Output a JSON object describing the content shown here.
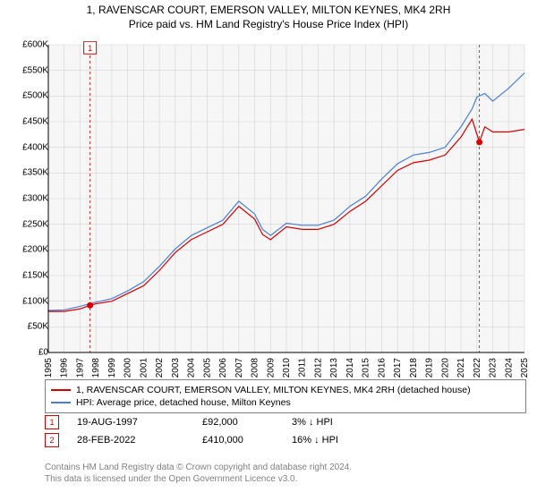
{
  "title_line1": "1, RAVENSCAR COURT, EMERSON VALLEY, MILTON KEYNES, MK4 2RH",
  "title_line2": "Price paid vs. HM Land Registry's House Price Index (HPI)",
  "chart": {
    "type": "line",
    "background_color": "#f6f6f6",
    "plot_color": "#ffffff",
    "grid_color": "#d3d3d3",
    "axis_color": "#000000",
    "x_min": 1995,
    "x_max": 2025,
    "x_ticks": [
      1995,
      1996,
      1997,
      1998,
      1999,
      2000,
      2001,
      2002,
      2003,
      2004,
      2005,
      2006,
      2007,
      2008,
      2009,
      2010,
      2011,
      2012,
      2013,
      2014,
      2015,
      2016,
      2017,
      2018,
      2019,
      2020,
      2021,
      2022,
      2023,
      2024,
      2025
    ],
    "y_min": 0,
    "y_max": 600,
    "y_ticks": [
      0,
      50,
      100,
      150,
      200,
      250,
      300,
      350,
      400,
      450,
      500,
      550,
      600
    ],
    "y_tick_labels": [
      "£0",
      "£50K",
      "£100K",
      "£150K",
      "£200K",
      "£250K",
      "£300K",
      "£350K",
      "£400K",
      "£450K",
      "£500K",
      "£550K",
      "£600K"
    ],
    "label_fontsize": 10,
    "series": [
      {
        "name": "property",
        "label": "1, RAVENSCAR COURT, EMERSON VALLEY, MILTON KEYNES, MK4 2RH (detached house)",
        "color": "#d50000",
        "line_width": 1.2,
        "data": [
          [
            1995,
            80
          ],
          [
            1996,
            80
          ],
          [
            1997,
            85
          ],
          [
            1997.63,
            92
          ],
          [
            1998,
            95
          ],
          [
            1999,
            100
          ],
          [
            2000,
            115
          ],
          [
            2001,
            130
          ],
          [
            2002,
            160
          ],
          [
            2003,
            195
          ],
          [
            2004,
            220
          ],
          [
            2005,
            235
          ],
          [
            2006,
            250
          ],
          [
            2007,
            285
          ],
          [
            2008,
            260
          ],
          [
            2008.5,
            230
          ],
          [
            2009,
            220
          ],
          [
            2010,
            245
          ],
          [
            2011,
            240
          ],
          [
            2012,
            240
          ],
          [
            2013,
            250
          ],
          [
            2014,
            275
          ],
          [
            2015,
            295
          ],
          [
            2016,
            325
          ],
          [
            2017,
            355
          ],
          [
            2018,
            370
          ],
          [
            2019,
            375
          ],
          [
            2020,
            385
          ],
          [
            2021,
            420
          ],
          [
            2021.7,
            455
          ],
          [
            2022.16,
            410
          ],
          [
            2022.5,
            440
          ],
          [
            2023,
            430
          ],
          [
            2024,
            430
          ],
          [
            2025,
            435
          ]
        ]
      },
      {
        "name": "hpi",
        "label": "HPI: Average price, detached house, Milton Keynes",
        "color": "#4a7fd6",
        "line_width": 1.2,
        "data": [
          [
            1995,
            82
          ],
          [
            1996,
            83
          ],
          [
            1997,
            90
          ],
          [
            1998,
            98
          ],
          [
            1999,
            105
          ],
          [
            2000,
            120
          ],
          [
            2001,
            138
          ],
          [
            2002,
            168
          ],
          [
            2003,
            202
          ],
          [
            2004,
            228
          ],
          [
            2005,
            243
          ],
          [
            2006,
            258
          ],
          [
            2007,
            295
          ],
          [
            2008,
            270
          ],
          [
            2008.5,
            240
          ],
          [
            2009,
            228
          ],
          [
            2010,
            252
          ],
          [
            2011,
            248
          ],
          [
            2012,
            248
          ],
          [
            2013,
            258
          ],
          [
            2014,
            285
          ],
          [
            2015,
            305
          ],
          [
            2016,
            338
          ],
          [
            2017,
            368
          ],
          [
            2018,
            385
          ],
          [
            2019,
            390
          ],
          [
            2020,
            400
          ],
          [
            2021,
            440
          ],
          [
            2021.7,
            475
          ],
          [
            2022,
            498
          ],
          [
            2022.5,
            505
          ],
          [
            2023,
            490
          ],
          [
            2024,
            515
          ],
          [
            2025,
            545
          ]
        ]
      }
    ],
    "markers": [
      {
        "id": "1",
        "x": 1997.63,
        "y": 92,
        "color": "#d50000",
        "y_label_offset": -295
      },
      {
        "id": "2",
        "x": 2022.16,
        "y": 410,
        "color": "#d50000",
        "y_label_offset": -340
      }
    ]
  },
  "legend": {
    "border_color": "#808080",
    "items": [
      {
        "color": "#d50000",
        "label": "1, RAVENSCAR COURT, EMERSON VALLEY, MILTON KEYNES, MK4 2RH (detached house)"
      },
      {
        "color": "#4a7fd6",
        "label": "HPI: Average price, detached house, Milton Keynes"
      }
    ]
  },
  "data_points": [
    {
      "marker": "1",
      "marker_color": "#d50000",
      "date": "19-AUG-1997",
      "price": "£92,000",
      "pct": "3%",
      "direction": "down",
      "vs": "HPI"
    },
    {
      "marker": "2",
      "marker_color": "#d50000",
      "date": "28-FEB-2022",
      "price": "£410,000",
      "pct": "16%",
      "direction": "down",
      "vs": "HPI"
    }
  ],
  "footer_line1": "Contains HM Land Registry data © Crown copyright and database right 2024.",
  "footer_line2": "This data is licensed under the Open Government Licence v3.0."
}
